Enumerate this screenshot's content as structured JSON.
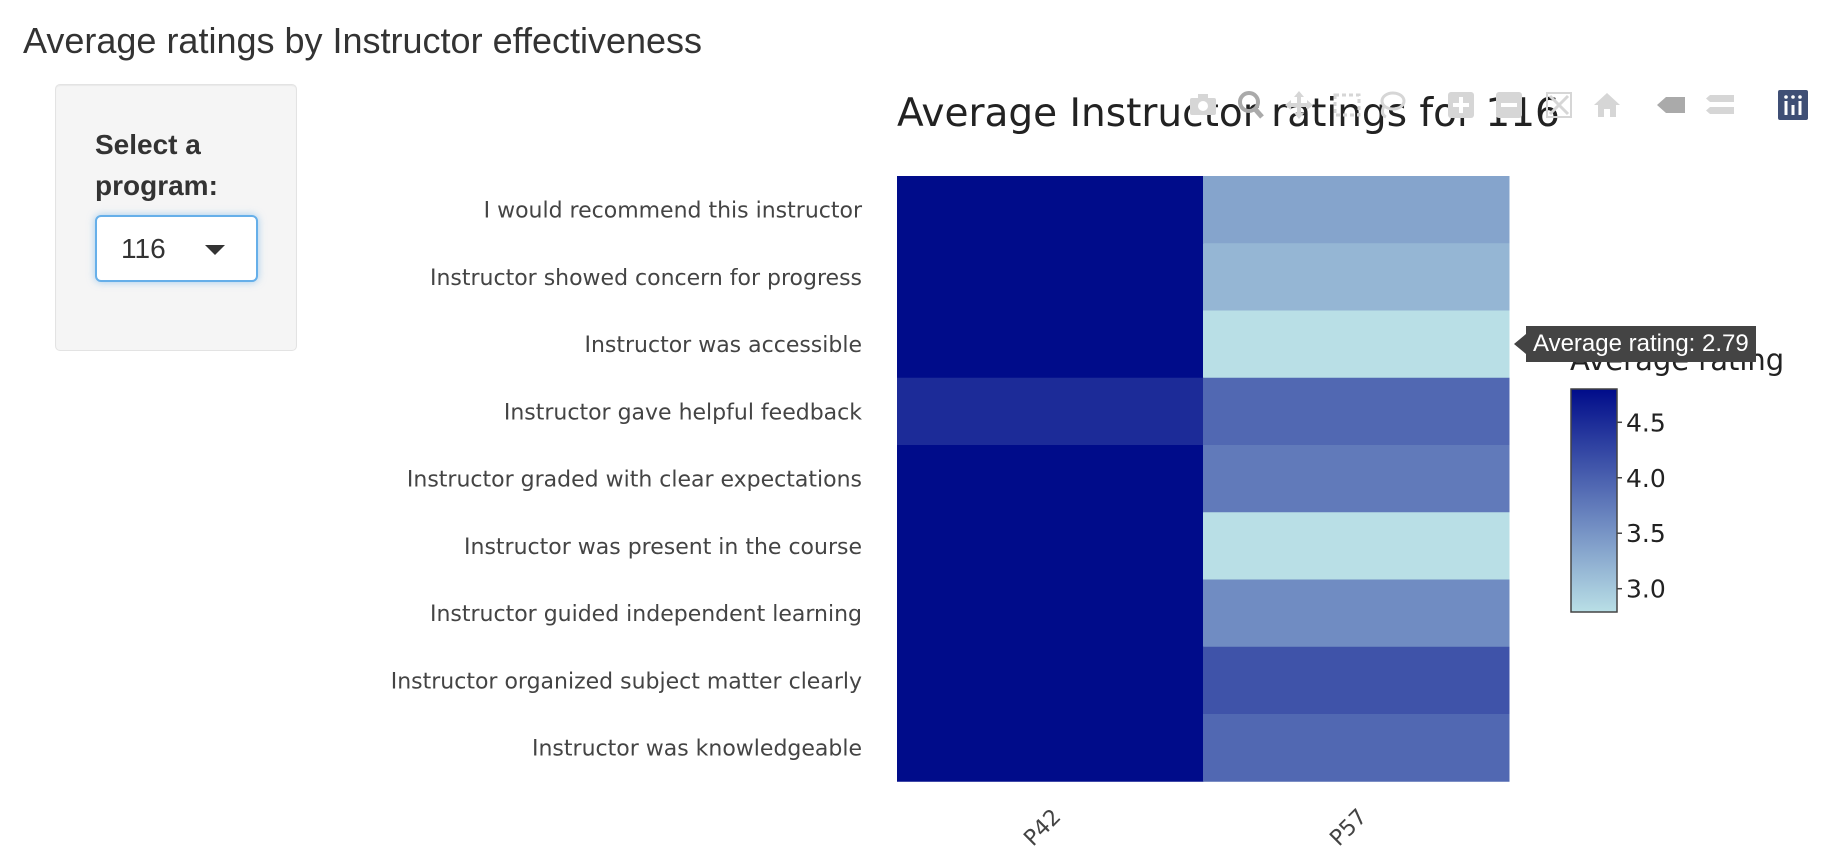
{
  "page": {
    "title": "Average ratings by Instructor effectiveness"
  },
  "sidebar": {
    "select_label": "Select a program:",
    "selected_value": "116"
  },
  "modebar": {
    "buttons": [
      "camera-icon",
      "zoom-icon",
      "pan-icon",
      "box-select-icon",
      "lasso-icon",
      "zoom-in-icon",
      "zoom-out-icon",
      "autoscale-icon",
      "reset-axes-icon",
      "spike-lines-icon",
      "compare-hover-icon",
      "plotly-logo-icon"
    ]
  },
  "tooltip": {
    "text": "Average rating: 2.79"
  },
  "chart_data": {
    "type": "heatmap",
    "title": "Average Instructor ratings for 116",
    "x": [
      "P42",
      "P57"
    ],
    "y": [
      "I would recommend this instructor",
      "Instructor showed concern for progress",
      "Instructor was accessible",
      "Instructor gave helpful feedback",
      "Instructor graded with clear expectations",
      "Instructor was present in the course",
      "Instructor guided independent learning",
      "Instructor organized subject matter clearly",
      "Instructor was knowledgeable"
    ],
    "z": [
      [
        4.8,
        3.35
      ],
      [
        4.8,
        3.18
      ],
      [
        4.8,
        2.79
      ],
      [
        4.5,
        3.92
      ],
      [
        4.8,
        3.75
      ],
      [
        4.8,
        2.79
      ],
      [
        4.8,
        3.58
      ],
      [
        4.8,
        4.12
      ],
      [
        4.8,
        3.92
      ]
    ],
    "colorbar": {
      "title": "Average rating",
      "range": [
        2.79,
        4.8
      ],
      "ticks": [
        3.0,
        3.5,
        4.0,
        4.5
      ],
      "colors": [
        "#b9dfe6",
        "#000c8a"
      ]
    }
  }
}
